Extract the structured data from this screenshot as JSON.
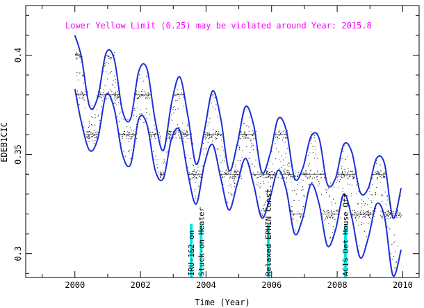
{
  "chart_data": {
    "type": "line",
    "title": "Lower Yellow  Limit (0.25) may be violated around Year: 2015.8",
    "xlabel": "Time (Year)",
    "ylabel": "EDEB1CIC",
    "xlim": [
      1998.5,
      2010.5
    ],
    "ylim": [
      0.288,
      0.425
    ],
    "x_ticks": [
      2000,
      2002,
      2004,
      2006,
      2008,
      2010
    ],
    "x_tick_labels": [
      "2000",
      "2002",
      "2004",
      "2006",
      "2008",
      "2010"
    ],
    "y_ticks": [
      0.3,
      0.35,
      0.4
    ],
    "y_tick_labels": [
      "0.3",
      "0.35",
      "0.4"
    ],
    "grid": false,
    "series_color": "#1c2fd6",
    "highlight_color": "#00e5e5",
    "series": [
      {
        "role": "upper-envelope",
        "x": [
          2000.0,
          2000.2,
          2000.45,
          2000.7,
          2000.95,
          2001.2,
          2001.45,
          2001.7,
          2001.95,
          2002.2,
          2002.45,
          2002.7,
          2002.95,
          2003.2,
          2003.45,
          2003.7,
          2003.95,
          2004.2,
          2004.45,
          2004.7,
          2004.95,
          2005.2,
          2005.45,
          2005.7,
          2005.95,
          2006.2,
          2006.45,
          2006.7,
          2006.95,
          2007.2,
          2007.45,
          2007.7,
          2007.95,
          2008.2,
          2008.45,
          2008.7,
          2008.95,
          2009.2,
          2009.45,
          2009.7,
          2009.95
        ],
        "y": [
          0.41,
          0.399,
          0.374,
          0.379,
          0.401,
          0.398,
          0.372,
          0.368,
          0.392,
          0.393,
          0.367,
          0.352,
          0.376,
          0.389,
          0.369,
          0.345,
          0.362,
          0.382,
          0.368,
          0.342,
          0.355,
          0.374,
          0.365,
          0.341,
          0.35,
          0.368,
          0.362,
          0.338,
          0.343,
          0.359,
          0.358,
          0.335,
          0.338,
          0.355,
          0.351,
          0.331,
          0.333,
          0.348,
          0.345,
          0.318,
          0.333
        ]
      },
      {
        "role": "lower-envelope",
        "x": [
          2000.0,
          2000.2,
          2000.45,
          2000.7,
          2000.95,
          2001.2,
          2001.45,
          2001.7,
          2001.95,
          2002.2,
          2002.45,
          2002.7,
          2002.95,
          2003.2,
          2003.45,
          2003.7,
          2003.95,
          2004.2,
          2004.45,
          2004.7,
          2004.95,
          2005.2,
          2005.45,
          2005.7,
          2005.95,
          2006.2,
          2006.45,
          2006.7,
          2006.95,
          2007.2,
          2007.45,
          2007.7,
          2007.95,
          2008.2,
          2008.45,
          2008.7,
          2008.95,
          2009.2,
          2009.45,
          2009.7,
          2009.95
        ],
        "y": [
          0.383,
          0.366,
          0.352,
          0.358,
          0.38,
          0.373,
          0.35,
          0.345,
          0.368,
          0.365,
          0.342,
          0.338,
          0.358,
          0.362,
          0.34,
          0.325,
          0.345,
          0.355,
          0.338,
          0.322,
          0.335,
          0.348,
          0.335,
          0.318,
          0.328,
          0.342,
          0.332,
          0.31,
          0.318,
          0.335,
          0.325,
          0.304,
          0.312,
          0.33,
          0.318,
          0.298,
          0.308,
          0.325,
          0.318,
          0.289,
          0.302
        ]
      }
    ],
    "step_levels": [
      0.4,
      0.38,
      0.36,
      0.34,
      0.32
    ],
    "events": [
      {
        "label": "IRU-1&2 on",
        "x": 2003.55
      },
      {
        "label": "Stuck-on Heater",
        "x": 2003.85
      },
      {
        "label": "Relaxed EPHIN Const.",
        "x": 2005.9
      },
      {
        "label": "ACIS Det House Off",
        "x": 2008.25
      }
    ]
  }
}
